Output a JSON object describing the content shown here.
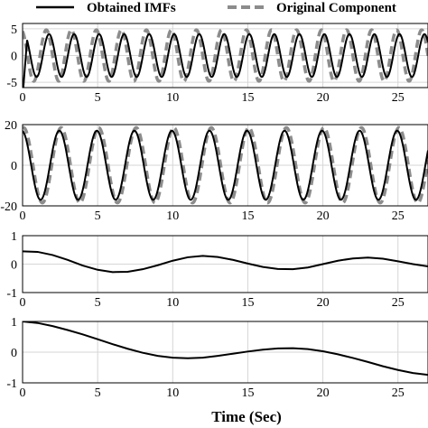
{
  "chart_data": {
    "type": "line",
    "xlabel": "Time (Sec)",
    "legend": {
      "placement": "top",
      "entries": [
        {
          "name": "Obtained IMFs",
          "color": "#000000",
          "style": "solid"
        },
        {
          "name": "Original Component",
          "color": "#8c8c8c",
          "style": "dashed"
        }
      ]
    },
    "xlim": [
      0,
      27
    ],
    "xticks": [
      0,
      5,
      10,
      15,
      20,
      25
    ],
    "grid": true,
    "panels": [
      {
        "ylim": [
          -6,
          6
        ],
        "yticks": [
          5,
          0,
          -5
        ],
        "series": [
          {
            "name": "Obtained IMFs",
            "function": "sine",
            "amplitude": 4,
            "frequency_hz": 0.6,
            "phase": 1.2,
            "start": {
              "x": 0.05,
              "y": -6
            }
          },
          {
            "name": "Original Component",
            "function": "sine",
            "amplitude": 4.8,
            "frequency_hz": 0.6,
            "phase": 1.9
          }
        ]
      },
      {
        "ylim": [
          -20,
          20
        ],
        "yticks": [
          20,
          0,
          -20
        ],
        "series": [
          {
            "name": "Obtained IMFs",
            "function": "sine",
            "amplitude": 17,
            "frequency_hz": 0.4,
            "phase": 1.7
          },
          {
            "name": "Original Component",
            "function": "sine",
            "amplitude": 18.5,
            "frequency_hz": 0.4,
            "phase": 1.4
          }
        ]
      },
      {
        "ylim": [
          -1,
          1
        ],
        "yticks": [
          1,
          0,
          -1
        ],
        "series": [
          {
            "name": "Obtained IMFs",
            "x": [
              0,
              1,
              2,
              3,
              4,
              5,
              6,
              7,
              8,
              9,
              10,
              11,
              12,
              13,
              14,
              15,
              16,
              17,
              18,
              19,
              20,
              21,
              22,
              23,
              24,
              25,
              26,
              27
            ],
            "y": [
              0.45,
              0.43,
              0.32,
              0.15,
              -0.05,
              -0.2,
              -0.28,
              -0.27,
              -0.18,
              -0.04,
              0.12,
              0.24,
              0.29,
              0.25,
              0.15,
              0.02,
              -0.1,
              -0.17,
              -0.18,
              -0.12,
              0.0,
              0.12,
              0.2,
              0.23,
              0.19,
              0.1,
              0.0,
              -0.08
            ]
          }
        ]
      },
      {
        "ylim": [
          -1,
          1
        ],
        "yticks": [
          1,
          0,
          -1
        ],
        "series": [
          {
            "name": "Obtained IMFs",
            "x": [
              0,
              1,
              2,
              3,
              4,
              5,
              6,
              7,
              8,
              9,
              10,
              11,
              12,
              13,
              14,
              15,
              16,
              17,
              18,
              19,
              20,
              21,
              22,
              23,
              24,
              25,
              26,
              27
            ],
            "y": [
              1.0,
              0.95,
              0.85,
              0.72,
              0.58,
              0.42,
              0.26,
              0.11,
              -0.02,
              -0.12,
              -0.18,
              -0.2,
              -0.18,
              -0.12,
              -0.05,
              0.02,
              0.08,
              0.12,
              0.13,
              0.1,
              0.03,
              -0.07,
              -0.19,
              -0.32,
              -0.46,
              -0.58,
              -0.68,
              -0.74
            ]
          }
        ]
      }
    ]
  }
}
